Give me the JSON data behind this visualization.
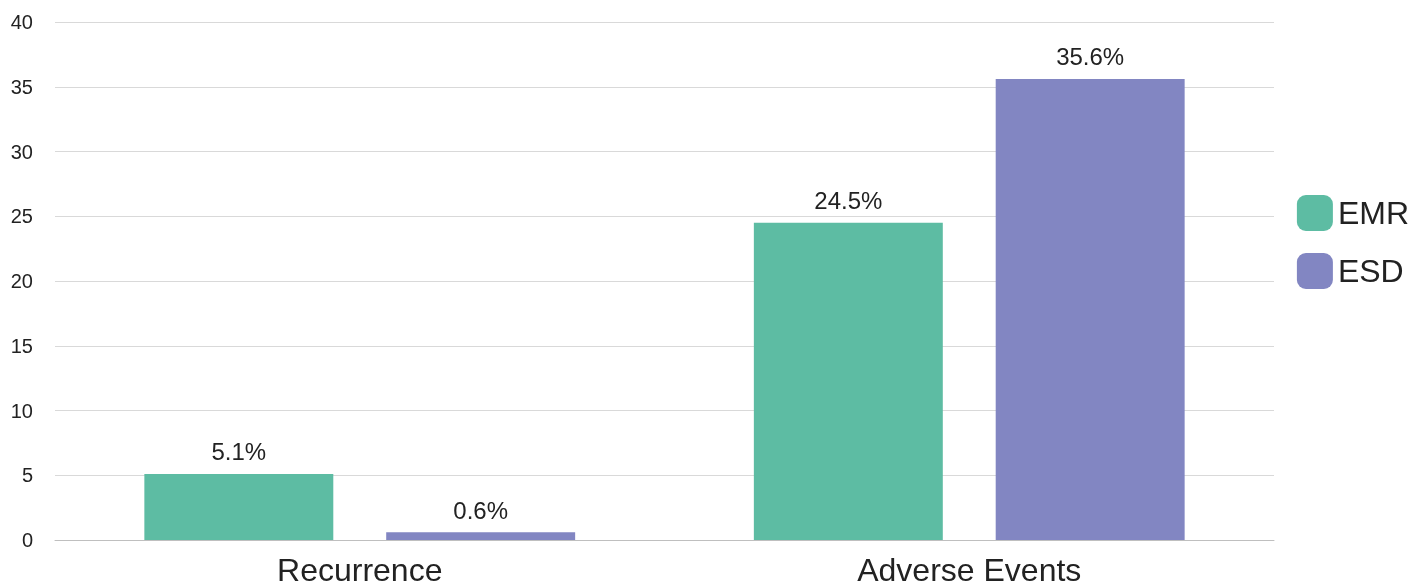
{
  "chart_data": {
    "type": "bar",
    "categories": [
      "Recurrence",
      "Adverse Events"
    ],
    "series": [
      {
        "name": "EMR",
        "color": "#5dbca3",
        "values": [
          5.1,
          24.5
        ],
        "value_labels": [
          "5.1%",
          "24.5%"
        ]
      },
      {
        "name": "ESD",
        "color": "#8286c2",
        "values": [
          0.6,
          35.6
        ],
        "value_labels": [
          "0.6%",
          "35.6%"
        ]
      }
    ],
    "ylim": [
      0,
      40
    ],
    "yticks": [
      0,
      5,
      10,
      15,
      20,
      25,
      30,
      35,
      40
    ],
    "grid": "y",
    "legend": "right"
  }
}
